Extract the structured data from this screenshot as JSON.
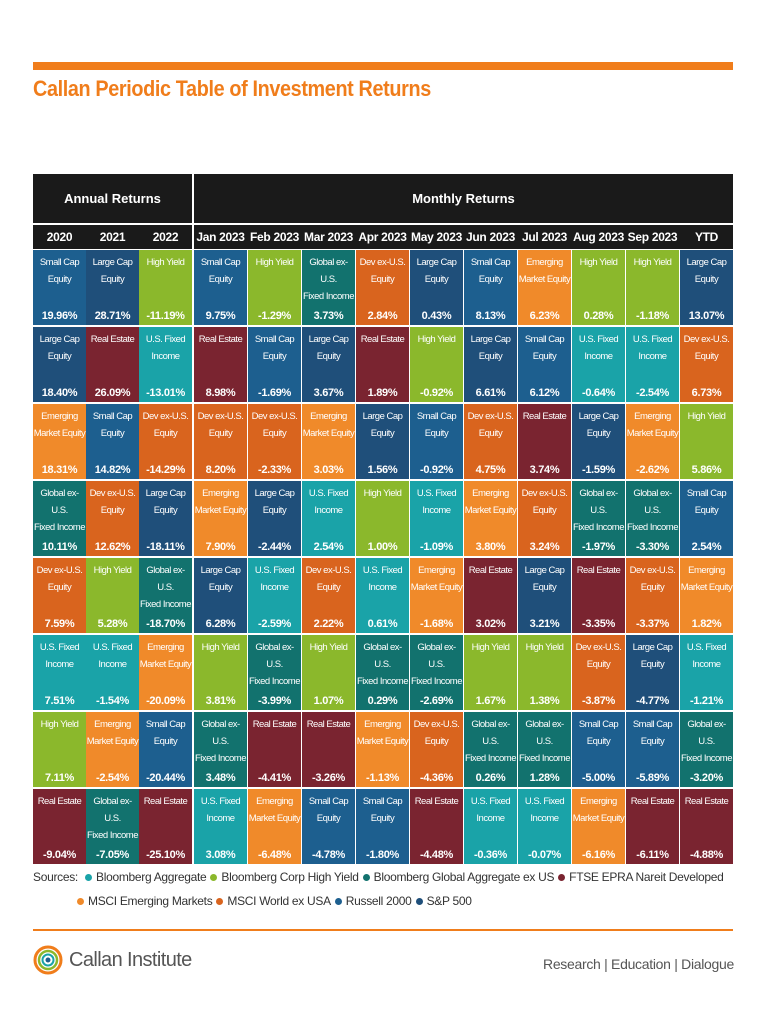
{
  "title": "Callan Periodic Table of Investment Returns",
  "header": {
    "annual_label": "Annual Returns",
    "monthly_label": "Monthly Returns"
  },
  "asset_colors": {
    "Small Cap Equity": "#1d5f8f",
    "Large Cap Equity": "#1f4f7a",
    "High Yield": "#8bb82c",
    "Global ex-U.S. Fixed Income": "#12726e",
    "Dev ex-U.S. Equity": "#d9641e",
    "Real Estate": "#7a2430",
    "Emerging Market Equity": "#f08a2a",
    "U.S. Fixed Income": "#1aa3a8"
  },
  "chart_data": {
    "type": "table",
    "columns": [
      "2020",
      "2021",
      "2022",
      "Jan 2023",
      "Feb 2023",
      "Mar 2023",
      "Apr 2023",
      "May 2023",
      "Jun 2023",
      "Jul 2023",
      "Aug 2023",
      "Sep 2023",
      "YTD"
    ],
    "ranks": [
      [
        {
          "asset": "Small Cap Equity",
          "label": "Small Cap\nEquity",
          "value": "19.96%"
        },
        {
          "asset": "Large Cap Equity",
          "label": "Large Cap\nEquity",
          "value": "18.40%"
        },
        {
          "asset": "Emerging Market Equity",
          "label": "Emerging\nMarket Equity",
          "value": "18.31%"
        },
        {
          "asset": "Global ex-U.S. Fixed Income",
          "label": "Global ex-U.S.\nFixed Income",
          "value": "10.11%"
        },
        {
          "asset": "Dev ex-U.S. Equity",
          "label": "Dev ex-U.S.\nEquity",
          "value": "7.59%"
        },
        {
          "asset": "U.S. Fixed Income",
          "label": "U.S. Fixed\nIncome",
          "value": "7.51%"
        },
        {
          "asset": "High Yield",
          "label": "High Yield",
          "value": "7.11%"
        },
        {
          "asset": "Real Estate",
          "label": "Real Estate",
          "value": "-9.04%"
        }
      ],
      [
        {
          "asset": "Large Cap Equity",
          "label": "Large Cap\nEquity",
          "value": "28.71%"
        },
        {
          "asset": "Real Estate",
          "label": "Real Estate",
          "value": "26.09%"
        },
        {
          "asset": "Small Cap Equity",
          "label": "Small Cap\nEquity",
          "value": "14.82%"
        },
        {
          "asset": "Dev ex-U.S. Equity",
          "label": "Dev ex-U.S.\nEquity",
          "value": "12.62%"
        },
        {
          "asset": "High Yield",
          "label": "High Yield",
          "value": "5.28%"
        },
        {
          "asset": "U.S. Fixed Income",
          "label": "U.S. Fixed\nIncome",
          "value": "-1.54%"
        },
        {
          "asset": "Emerging Market Equity",
          "label": "Emerging\nMarket Equity",
          "value": "-2.54%"
        },
        {
          "asset": "Global ex-U.S. Fixed Income",
          "label": "Global ex-U.S.\nFixed Income",
          "value": "-7.05%"
        }
      ],
      [
        {
          "asset": "High Yield",
          "label": "High Yield",
          "value": "-11.19%"
        },
        {
          "asset": "U.S. Fixed Income",
          "label": "U.S. Fixed\nIncome",
          "value": "-13.01%"
        },
        {
          "asset": "Dev ex-U.S. Equity",
          "label": "Dev ex-U.S.\nEquity",
          "value": "-14.29%"
        },
        {
          "asset": "Large Cap Equity",
          "label": "Large Cap\nEquity",
          "value": "-18.11%"
        },
        {
          "asset": "Global ex-U.S. Fixed Income",
          "label": "Global ex-U.S.\nFixed Income",
          "value": "-18.70%"
        },
        {
          "asset": "Emerging Market Equity",
          "label": "Emerging\nMarket Equity",
          "value": "-20.09%"
        },
        {
          "asset": "Small Cap Equity",
          "label": "Small Cap\nEquity",
          "value": "-20.44%"
        },
        {
          "asset": "Real Estate",
          "label": "Real Estate",
          "value": "-25.10%"
        }
      ],
      [
        {
          "asset": "Small Cap Equity",
          "label": "Small Cap\nEquity",
          "value": "9.75%"
        },
        {
          "asset": "Real Estate",
          "label": "Real Estate",
          "value": "8.98%"
        },
        {
          "asset": "Dev ex-U.S. Equity",
          "label": "Dev ex-U.S.\nEquity",
          "value": "8.20%"
        },
        {
          "asset": "Emerging Market Equity",
          "label": "Emerging\nMarket Equity",
          "value": "7.90%"
        },
        {
          "asset": "Large Cap Equity",
          "label": "Large Cap\nEquity",
          "value": "6.28%"
        },
        {
          "asset": "High Yield",
          "label": "High Yield",
          "value": "3.81%"
        },
        {
          "asset": "Global ex-U.S. Fixed Income",
          "label": "Global ex-U.S.\nFixed Income",
          "value": "3.48%"
        },
        {
          "asset": "U.S. Fixed Income",
          "label": "U.S. Fixed\nIncome",
          "value": "3.08%"
        }
      ],
      [
        {
          "asset": "High Yield",
          "label": "High Yield",
          "value": "-1.29%"
        },
        {
          "asset": "Small Cap Equity",
          "label": "Small Cap\nEquity",
          "value": "-1.69%"
        },
        {
          "asset": "Dev ex-U.S. Equity",
          "label": "Dev ex-U.S.\nEquity",
          "value": "-2.33%"
        },
        {
          "asset": "Large Cap Equity",
          "label": "Large Cap\nEquity",
          "value": "-2.44%"
        },
        {
          "asset": "U.S. Fixed Income",
          "label": "U.S. Fixed\nIncome",
          "value": "-2.59%"
        },
        {
          "asset": "Global ex-U.S. Fixed Income",
          "label": "Global ex-U.S.\nFixed Income",
          "value": "-3.99%"
        },
        {
          "asset": "Real Estate",
          "label": "Real Estate",
          "value": "-4.41%"
        },
        {
          "asset": "Emerging Market Equity",
          "label": "Emerging\nMarket Equity",
          "value": "-6.48%"
        }
      ],
      [
        {
          "asset": "Global ex-U.S. Fixed Income",
          "label": "Global ex-U.S.\nFixed Income",
          "value": "3.73%"
        },
        {
          "asset": "Large Cap Equity",
          "label": "Large Cap\nEquity",
          "value": "3.67%"
        },
        {
          "asset": "Emerging Market Equity",
          "label": "Emerging\nMarket Equity",
          "value": "3.03%"
        },
        {
          "asset": "U.S. Fixed Income",
          "label": "U.S. Fixed\nIncome",
          "value": "2.54%"
        },
        {
          "asset": "Dev ex-U.S. Equity",
          "label": "Dev ex-U.S.\nEquity",
          "value": "2.22%"
        },
        {
          "asset": "High Yield",
          "label": "High Yield",
          "value": "1.07%"
        },
        {
          "asset": "Real Estate",
          "label": "Real Estate",
          "value": "-3.26%"
        },
        {
          "asset": "Small Cap Equity",
          "label": "Small Cap\nEquity",
          "value": "-4.78%"
        }
      ],
      [
        {
          "asset": "Dev ex-U.S. Equity",
          "label": "Dev ex-U.S.\nEquity",
          "value": "2.84%"
        },
        {
          "asset": "Real Estate",
          "label": "Real Estate",
          "value": "1.89%"
        },
        {
          "asset": "Large Cap Equity",
          "label": "Large Cap\nEquity",
          "value": "1.56%"
        },
        {
          "asset": "High Yield",
          "label": "High Yield",
          "value": "1.00%"
        },
        {
          "asset": "U.S. Fixed Income",
          "label": "U.S. Fixed\nIncome",
          "value": "0.61%"
        },
        {
          "asset": "Global ex-U.S. Fixed Income",
          "label": "Global ex-U.S.\nFixed Income",
          "value": "0.29%"
        },
        {
          "asset": "Emerging Market Equity",
          "label": "Emerging\nMarket Equity",
          "value": "-1.13%"
        },
        {
          "asset": "Small Cap Equity",
          "label": "Small Cap\nEquity",
          "value": "-1.80%"
        }
      ],
      [
        {
          "asset": "Large Cap Equity",
          "label": "Large Cap\nEquity",
          "value": "0.43%"
        },
        {
          "asset": "High Yield",
          "label": "High Yield",
          "value": "-0.92%"
        },
        {
          "asset": "Small Cap Equity",
          "label": "Small Cap\nEquity",
          "value": "-0.92%"
        },
        {
          "asset": "U.S. Fixed Income",
          "label": "U.S. Fixed\nIncome",
          "value": "-1.09%"
        },
        {
          "asset": "Emerging Market Equity",
          "label": "Emerging\nMarket Equity",
          "value": "-1.68%"
        },
        {
          "asset": "Global ex-U.S. Fixed Income",
          "label": "Global ex-U.S.\nFixed Income",
          "value": "-2.69%"
        },
        {
          "asset": "Dev ex-U.S. Equity",
          "label": "Dev ex-U.S.\nEquity",
          "value": "-4.36%"
        },
        {
          "asset": "Real Estate",
          "label": "Real Estate",
          "value": "-4.48%"
        }
      ],
      [
        {
          "asset": "Small Cap Equity",
          "label": "Small Cap\nEquity",
          "value": "8.13%"
        },
        {
          "asset": "Large Cap Equity",
          "label": "Large Cap\nEquity",
          "value": "6.61%"
        },
        {
          "asset": "Dev ex-U.S. Equity",
          "label": "Dev ex-U.S.\nEquity",
          "value": "4.75%"
        },
        {
          "asset": "Emerging Market Equity",
          "label": "Emerging\nMarket Equity",
          "value": "3.80%"
        },
        {
          "asset": "Real Estate",
          "label": "Real Estate",
          "value": "3.02%"
        },
        {
          "asset": "High Yield",
          "label": "High Yield",
          "value": "1.67%"
        },
        {
          "asset": "Global ex-U.S. Fixed Income",
          "label": "Global ex-U.S.\nFixed Income",
          "value": "0.26%"
        },
        {
          "asset": "U.S. Fixed Income",
          "label": "U.S. Fixed\nIncome",
          "value": "-0.36%"
        }
      ],
      [
        {
          "asset": "Emerging Market Equity",
          "label": "Emerging\nMarket Equity",
          "value": "6.23%"
        },
        {
          "asset": "Small Cap Equity",
          "label": "Small Cap\nEquity",
          "value": "6.12%"
        },
        {
          "asset": "Real Estate",
          "label": "Real Estate",
          "value": "3.74%"
        },
        {
          "asset": "Dev ex-U.S. Equity",
          "label": "Dev ex-U.S.\nEquity",
          "value": "3.24%"
        },
        {
          "asset": "Large Cap Equity",
          "label": "Large Cap\nEquity",
          "value": "3.21%"
        },
        {
          "asset": "High Yield",
          "label": "High Yield",
          "value": "1.38%"
        },
        {
          "asset": "Global ex-U.S. Fixed Income",
          "label": "Global ex-U.S.\nFixed Income",
          "value": "1.28%"
        },
        {
          "asset": "U.S. Fixed Income",
          "label": "U.S. Fixed\nIncome",
          "value": "-0.07%"
        }
      ],
      [
        {
          "asset": "High Yield",
          "label": "High Yield",
          "value": "0.28%"
        },
        {
          "asset": "U.S. Fixed Income",
          "label": "U.S. Fixed\nIncome",
          "value": "-0.64%"
        },
        {
          "asset": "Large Cap Equity",
          "label": "Large Cap\nEquity",
          "value": "-1.59%"
        },
        {
          "asset": "Global ex-U.S. Fixed Income",
          "label": "Global ex-U.S.\nFixed Income",
          "value": "-1.97%"
        },
        {
          "asset": "Real Estate",
          "label": "Real Estate",
          "value": "-3.35%"
        },
        {
          "asset": "Dev ex-U.S. Equity",
          "label": "Dev ex-U.S.\nEquity",
          "value": "-3.87%"
        },
        {
          "asset": "Small Cap Equity",
          "label": "Small Cap\nEquity",
          "value": "-5.00%"
        },
        {
          "asset": "Emerging Market Equity",
          "label": "Emerging\nMarket Equity",
          "value": "-6.16%"
        }
      ],
      [
        {
          "asset": "High Yield",
          "label": "High Yield",
          "value": "-1.18%"
        },
        {
          "asset": "U.S. Fixed Income",
          "label": "U.S. Fixed\nIncome",
          "value": "-2.54%"
        },
        {
          "asset": "Emerging Market Equity",
          "label": "Emerging\nMarket Equity",
          "value": "-2.62%"
        },
        {
          "asset": "Global ex-U.S. Fixed Income",
          "label": "Global ex-U.S.\nFixed Income",
          "value": "-3.30%"
        },
        {
          "asset": "Dev ex-U.S. Equity",
          "label": "Dev ex-U.S.\nEquity",
          "value": "-3.37%"
        },
        {
          "asset": "Large Cap Equity",
          "label": "Large Cap\nEquity",
          "value": "-4.77%"
        },
        {
          "asset": "Small Cap Equity",
          "label": "Small Cap\nEquity",
          "value": "-5.89%"
        },
        {
          "asset": "Real Estate",
          "label": "Real Estate",
          "value": "-6.11%"
        }
      ],
      [
        {
          "asset": "Large Cap Equity",
          "label": "Large Cap\nEquity",
          "value": "13.07%"
        },
        {
          "asset": "Dev ex-U.S. Equity",
          "label": "Dev ex-U.S.\nEquity",
          "value": "6.73%"
        },
        {
          "asset": "High Yield",
          "label": "High Yield",
          "value": "5.86%"
        },
        {
          "asset": "Small Cap Equity",
          "label": "Small Cap\nEquity",
          "value": "2.54%"
        },
        {
          "asset": "Emerging Market Equity",
          "label": "Emerging\nMarket Equity",
          "value": "1.82%"
        },
        {
          "asset": "U.S. Fixed Income",
          "label": "U.S. Fixed\nIncome",
          "value": "-1.21%"
        },
        {
          "asset": "Global ex-U.S. Fixed Income",
          "label": "Global ex-U.S.\nFixed Income",
          "value": "-3.20%"
        },
        {
          "asset": "Real Estate",
          "label": "Real Estate",
          "value": "-4.88%"
        }
      ]
    ]
  },
  "sources": {
    "label": "Sources:",
    "items": [
      {
        "name": "Bloomberg Aggregate",
        "color": "#1aa3a8"
      },
      {
        "name": "Bloomberg Corp High Yield",
        "color": "#8bb82c"
      },
      {
        "name": "Bloomberg Global Aggregate ex US",
        "color": "#12726e"
      },
      {
        "name": "FTSE EPRA Nareit Developed",
        "color": "#7a2430"
      },
      {
        "name": "MSCI Emerging Markets",
        "color": "#f08a2a"
      },
      {
        "name": "MSCI World ex USA",
        "color": "#d9641e"
      },
      {
        "name": "Russell 2000",
        "color": "#1d5f8f"
      },
      {
        "name": "S&P 500",
        "color": "#1f4f7a"
      }
    ]
  },
  "footer": {
    "logo_text": "Callan Institute",
    "tagline": "Research | Education | Dialogue"
  }
}
